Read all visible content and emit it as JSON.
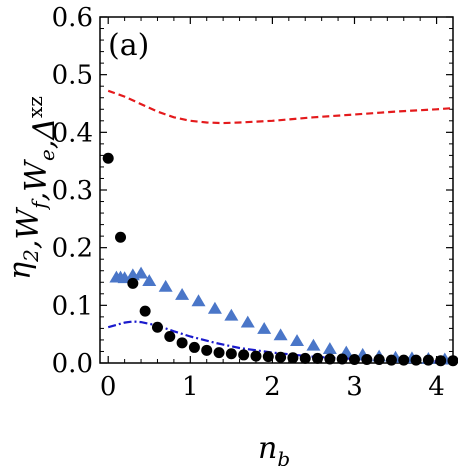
{
  "chart_data": {
    "type": "scatter",
    "panel_label": "(a)",
    "title": "",
    "xlabel_main": "n",
    "xlabel_sub": "b",
    "ylabel": {
      "parts": [
        {
          "t": "η",
          "sub": "2"
        },
        {
          "t": ","
        },
        {
          "t": "W",
          "sub": "f"
        },
        {
          "t": ","
        },
        {
          "t": "W",
          "sub": "e"
        },
        {
          "t": ","
        },
        {
          "t": "Δ",
          "sup": "xz"
        }
      ]
    },
    "xlim": [
      -0.1,
      4.2
    ],
    "ylim": [
      0,
      0.6
    ],
    "xticks": [
      "0",
      "1",
      "2",
      "3",
      "4"
    ],
    "yticks": [
      "0.0",
      "0.1",
      "0.2",
      "0.3",
      "0.4",
      "0.5",
      "0.6"
    ],
    "xtick_values": [
      0,
      1,
      2,
      3,
      4
    ],
    "ytick_values": [
      0,
      0.1,
      0.2,
      0.3,
      0.4,
      0.5,
      0.6
    ],
    "colors": {
      "red_dashed": "#e41a1c",
      "blue_dashdot": "#1a1acc",
      "triangles": "#4a76c8",
      "circles": "#000000"
    },
    "series": [
      {
        "style": "dashed",
        "color": "#e41a1c",
        "points": [
          [
            0,
            0.472
          ],
          [
            0.2,
            0.462
          ],
          [
            0.4,
            0.449
          ],
          [
            0.6,
            0.436
          ],
          [
            0.8,
            0.426
          ],
          [
            1.0,
            0.42
          ],
          [
            1.2,
            0.417
          ],
          [
            1.4,
            0.416
          ],
          [
            1.6,
            0.417
          ],
          [
            2.0,
            0.42
          ],
          [
            2.5,
            0.426
          ],
          [
            3.0,
            0.431
          ],
          [
            3.5,
            0.436
          ],
          [
            4.0,
            0.44
          ],
          [
            4.2,
            0.442
          ]
        ]
      },
      {
        "style": "dashdot",
        "color": "#1a1acc",
        "points": [
          [
            0,
            0.062
          ],
          [
            0.1,
            0.066
          ],
          [
            0.2,
            0.07
          ],
          [
            0.3,
            0.072
          ],
          [
            0.4,
            0.071
          ],
          [
            0.6,
            0.065
          ],
          [
            0.8,
            0.055
          ],
          [
            1.0,
            0.046
          ],
          [
            1.3,
            0.035
          ],
          [
            1.6,
            0.026
          ],
          [
            2.0,
            0.018
          ],
          [
            2.5,
            0.011
          ],
          [
            3.0,
            0.007
          ],
          [
            3.5,
            0.004
          ],
          [
            4.0,
            0.003
          ],
          [
            4.2,
            0.002
          ]
        ]
      },
      {
        "style": "triangles",
        "color": "#4a76c8",
        "points": [
          [
            0.1,
            0.148
          ],
          [
            0.15,
            0.148
          ],
          [
            0.2,
            0.147
          ],
          [
            0.3,
            0.152
          ],
          [
            0.4,
            0.155
          ],
          [
            0.5,
            0.142
          ],
          [
            0.7,
            0.132
          ],
          [
            0.9,
            0.118
          ],
          [
            1.1,
            0.107
          ],
          [
            1.3,
            0.094
          ],
          [
            1.5,
            0.082
          ],
          [
            1.7,
            0.07
          ],
          [
            1.9,
            0.059
          ],
          [
            2.1,
            0.048
          ],
          [
            2.3,
            0.038
          ],
          [
            2.5,
            0.03
          ],
          [
            2.7,
            0.024
          ],
          [
            2.9,
            0.018
          ],
          [
            3.1,
            0.014
          ],
          [
            3.3,
            0.011
          ],
          [
            3.5,
            0.009
          ],
          [
            3.7,
            0.008
          ],
          [
            3.9,
            0.007
          ],
          [
            4.1,
            0.006
          ]
        ]
      },
      {
        "style": "circles",
        "color": "#000000",
        "points": [
          [
            0.0,
            0.355
          ],
          [
            0.15,
            0.218
          ],
          [
            0.3,
            0.138
          ],
          [
            0.45,
            0.09
          ],
          [
            0.6,
            0.062
          ],
          [
            0.75,
            0.046
          ],
          [
            0.9,
            0.035
          ],
          [
            1.05,
            0.027
          ],
          [
            1.2,
            0.022
          ],
          [
            1.35,
            0.018
          ],
          [
            1.5,
            0.016
          ],
          [
            1.65,
            0.014
          ],
          [
            1.8,
            0.012
          ],
          [
            1.95,
            0.011
          ],
          [
            2.1,
            0.01
          ],
          [
            2.25,
            0.009
          ],
          [
            2.4,
            0.008
          ],
          [
            2.55,
            0.008
          ],
          [
            2.7,
            0.007
          ],
          [
            2.85,
            0.007
          ],
          [
            3.0,
            0.006
          ],
          [
            3.15,
            0.006
          ],
          [
            3.3,
            0.006
          ],
          [
            3.45,
            0.005
          ],
          [
            3.6,
            0.005
          ],
          [
            3.75,
            0.005
          ],
          [
            3.9,
            0.005
          ],
          [
            4.05,
            0.004
          ],
          [
            4.2,
            0.004
          ]
        ]
      }
    ]
  }
}
